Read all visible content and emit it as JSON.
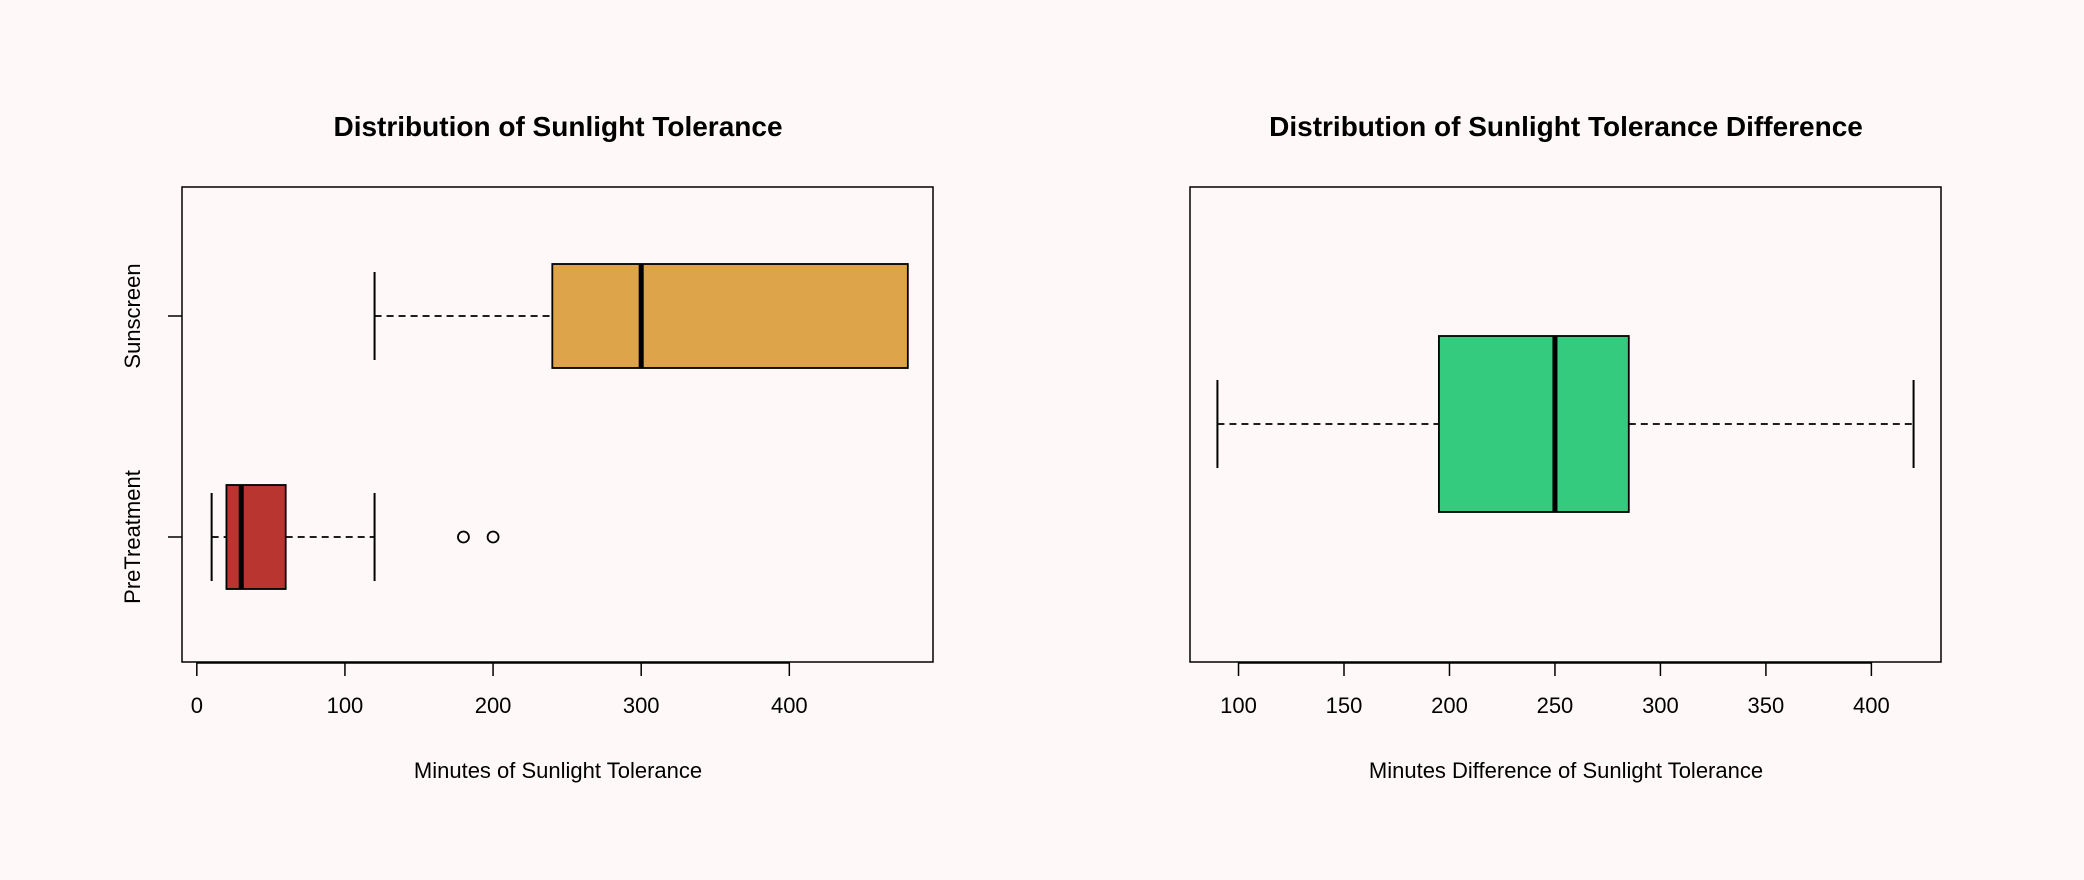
{
  "chart_data": [
    {
      "type": "boxplot",
      "orientation": "horizontal",
      "title": "Distribution of Sunlight Tolerance",
      "xlabel": "Minutes of Sunlight Tolerance",
      "ylabel": "",
      "xlim": [
        -10,
        497
      ],
      "xticks": [
        0,
        100,
        200,
        300,
        400
      ],
      "groups": [
        {
          "name": "PreTreatment",
          "color": "#b83530",
          "whisker_low": 10,
          "q1": 20,
          "median": 30,
          "q3": 60,
          "whisker_high": 120,
          "outliers": [
            180,
            200
          ]
        },
        {
          "name": "Sunscreen",
          "color": "#dea44a",
          "whisker_low": 120,
          "q1": 240,
          "median": 300,
          "q3": 480,
          "whisker_high": 480,
          "outliers": []
        }
      ]
    },
    {
      "type": "boxplot",
      "orientation": "horizontal",
      "title": "Distribution of Sunlight Tolerance Difference",
      "xlabel": "Minutes Difference of Sunlight Tolerance",
      "ylabel": "",
      "xlim": [
        77,
        433
      ],
      "xticks": [
        100,
        150,
        200,
        250,
        300,
        350,
        400
      ],
      "groups": [
        {
          "name": "",
          "color": "#34cb7e",
          "whisker_low": 90,
          "q1": 195,
          "median": 250,
          "q3": 285,
          "whisker_high": 420,
          "outliers": []
        }
      ]
    }
  ]
}
